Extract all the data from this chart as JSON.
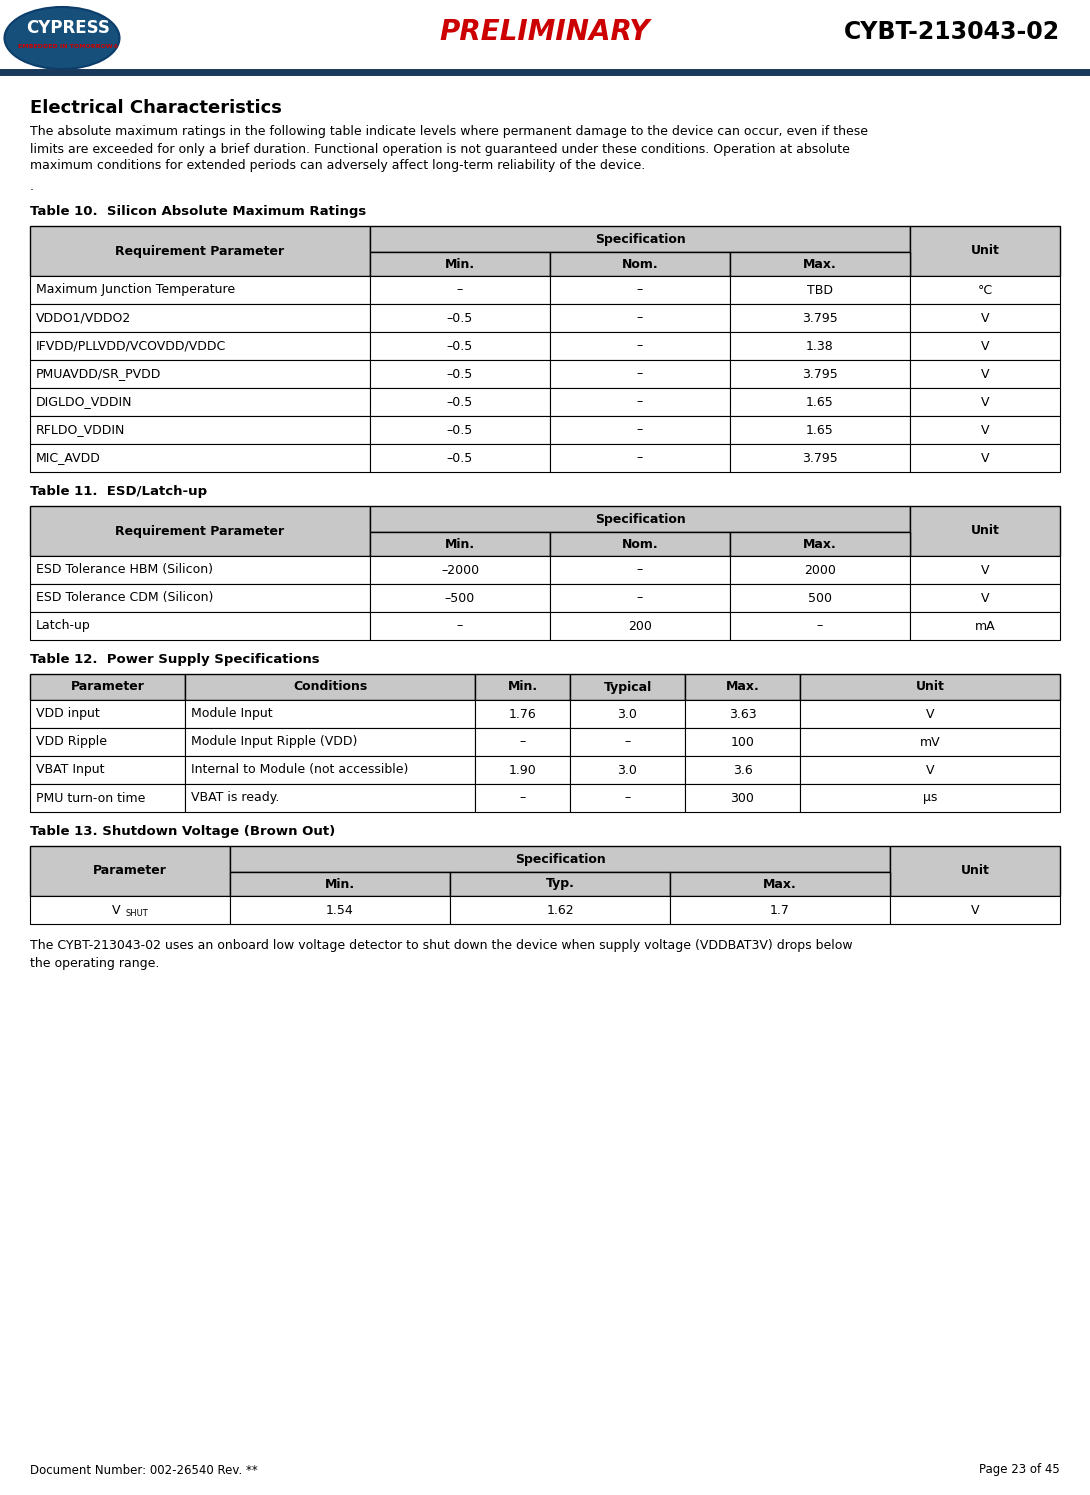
{
  "header_preliminary": "PRELIMINARY",
  "header_product": "CYBT-213043-02",
  "section_title": "Electrical Characteristics",
  "intro_text": "The absolute maximum ratings in the following table indicate levels where permanent damage to the device can occur, even if these\nlimits are exceeded for only a brief duration. Functional operation is not guaranteed under these conditions. Operation at absolute\nmaximum conditions for extended periods can adversely affect long-term reliability of the device.",
  "dot_line": ".",
  "table10_title": "Table 10.  Silicon Absolute Maximum Ratings",
  "table10_rows": [
    [
      "Maximum Junction Temperature",
      "–",
      "–",
      "TBD",
      "°C"
    ],
    [
      "VDDO1/VDDO2",
      "–0.5",
      "–",
      "3.795",
      "V"
    ],
    [
      "IFVDD/PLLVDD/VCOVDD/VDDC",
      "–0.5",
      "–",
      "1.38",
      "V"
    ],
    [
      "PMUAVDD/SR_PVDD",
      "–0.5",
      "–",
      "3.795",
      "V"
    ],
    [
      "DIGLDO_VDDIN",
      "–0.5",
      "–",
      "1.65",
      "V"
    ],
    [
      "RFLDO_VDDIN",
      "–0.5",
      "–",
      "1.65",
      "V"
    ],
    [
      "MIC_AVDD",
      "–0.5",
      "–",
      "3.795",
      "V"
    ]
  ],
  "table11_title": "Table 11.  ESD/Latch-up",
  "table11_rows": [
    [
      "ESD Tolerance HBM (Silicon)",
      "–2000",
      "–",
      "2000",
      "V"
    ],
    [
      "ESD Tolerance CDM (Silicon)",
      "–500",
      "–",
      "500",
      "V"
    ],
    [
      "Latch-up",
      "–",
      "200",
      "–",
      "mA"
    ]
  ],
  "table12_title": "Table 12.  Power Supply Specifications",
  "table12_header": [
    "Parameter",
    "Conditions",
    "Min.",
    "Typical",
    "Max.",
    "Unit"
  ],
  "table12_rows": [
    [
      "VDD input",
      "Module Input",
      "1.76",
      "3.0",
      "3.63",
      "V"
    ],
    [
      "VDD Ripple",
      "Module Input Ripple (VDD)",
      "–",
      "–",
      "100",
      "mV"
    ],
    [
      "VBAT Input",
      "Internal to Module (not accessible)",
      "1.90",
      "3.0",
      "3.6",
      "V"
    ],
    [
      "PMU turn-on time",
      "VBAT is ready.",
      "–",
      "–",
      "300",
      "μs"
    ]
  ],
  "table13_title": "Table 13. Shutdown Voltage (Brown Out)",
  "table13_rows": [
    [
      "VSHUT",
      "1.54",
      "1.62",
      "1.7",
      "V"
    ]
  ],
  "footer_text1": "The CYBT-213043-02 uses an onboard low voltage detector to shut down the device when supply voltage (VDDBAT3V) drops below",
  "footer_text2": "the operating range.",
  "footer_doc": "Document Number: 002-26540 Rev. **",
  "footer_page": "Page 23 of 45",
  "header_line_color": "#1a3a5c",
  "table_header_bg": "#c8c8c8",
  "preliminary_color": "#cc0000",
  "product_color": "#000000"
}
